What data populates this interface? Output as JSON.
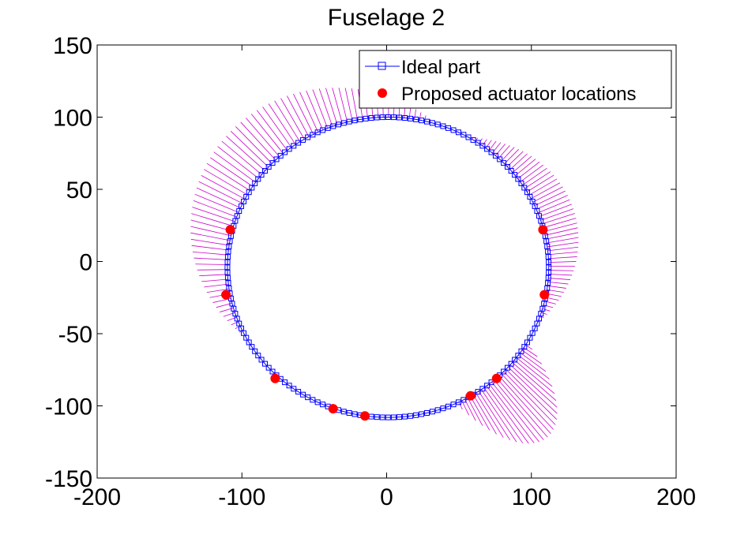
{
  "chart_data": {
    "type": "scatter",
    "title": "Fuselage 2",
    "xlabel": "",
    "ylabel": "",
    "xlim": [
      -200,
      200
    ],
    "ylim": [
      -150,
      150
    ],
    "xticks": [
      -200,
      -100,
      0,
      100,
      200
    ],
    "yticks": [
      150,
      100,
      50,
      0,
      -50,
      -100,
      -150
    ],
    "xtick_labels": [
      "-200",
      "-100",
      "0",
      "100",
      "200"
    ],
    "ytick_labels": [
      "150",
      "100",
      "50",
      "0",
      "-50",
      "-100",
      "-150"
    ],
    "grid": false,
    "legend_position": "top-right",
    "series": [
      {
        "name": "Ideal part",
        "marker": "square",
        "color": "#0000ff",
        "shape": "ellipse",
        "center": [
          1,
          -4
        ],
        "semi_axis_x": 111,
        "semi_axis_y": 104,
        "point_count": 180
      },
      {
        "name": "Proposed actuator locations",
        "marker": "circle",
        "color": "#ff0000",
        "points": [
          [
            -108,
            22
          ],
          [
            -111,
            -23
          ],
          [
            -77,
            -81
          ],
          [
            -37,
            -102
          ],
          [
            -15,
            -107
          ],
          [
            58,
            -93
          ],
          [
            76,
            -81
          ],
          [
            109,
            -23
          ],
          [
            108,
            22
          ]
        ]
      },
      {
        "name": "",
        "type": "hatching-segments",
        "color": "#cc00cc",
        "segments": [
          {
            "from_angle_deg": -22,
            "to_angle_deg": 60,
            "offset_start": 0,
            "offset_peak": 20,
            "offset_end": 0,
            "count": 55
          },
          {
            "from_angle_deg": 75,
            "to_angle_deg": 205,
            "offset_start": 2,
            "offset_peak": 30,
            "offset_end": 2,
            "count": 70
          },
          {
            "from_angle_deg": 295,
            "to_angle_deg": 330,
            "offset_start": 0,
            "offset_peak": 45,
            "offset_end": 0,
            "count": 30
          }
        ]
      }
    ]
  }
}
